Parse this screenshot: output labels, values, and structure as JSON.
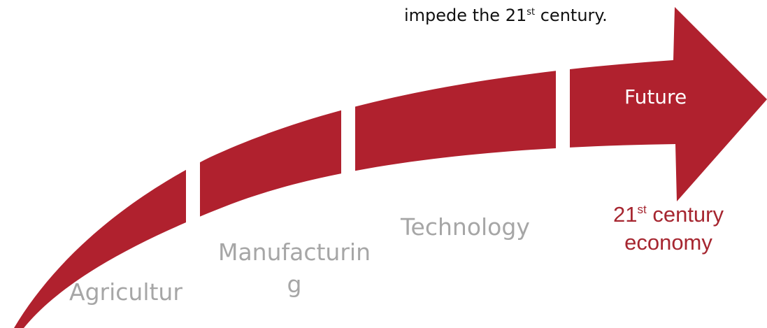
{
  "caption": {
    "before": "impede the 21",
    "sup": "st",
    "after": " century."
  },
  "stages": {
    "agriculture": "Agricultur",
    "manufacturing": "Manufacturin\ng",
    "technology": "Technology",
    "future": "Future"
  },
  "economy": {
    "before": "21",
    "sup": "st",
    "after": " century economy"
  },
  "colors": {
    "arrow": "#b0212e",
    "stage_text": "#a6a6a6",
    "economy_text": "#a62630",
    "caption_text": "#111111"
  }
}
